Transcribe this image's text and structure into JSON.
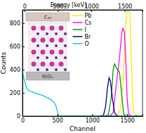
{
  "chart_data": {
    "type": "line",
    "xlabel": "Channel",
    "ylabel": "Counts",
    "x2label": "Energy [keV]",
    "xlim": [
      0,
      1720
    ],
    "xticks": [
      0,
      500,
      1000,
      1500
    ],
    "x2lim": [
      -30,
      1765
    ],
    "x2ticks": [
      0,
      500,
      1000,
      1500
    ],
    "ylim": [
      0,
      915
    ],
    "yticks": [
      0,
      200,
      400,
      600,
      800
    ],
    "grid": false,
    "legend": "upper center",
    "annotations": [
      {
        "text": "C₆₀"
      },
      {
        "text": "NiOₓ"
      }
    ],
    "series": [
      {
        "name": "Pb",
        "color": "#ffe600",
        "x": [
          1350,
          1400,
          1430,
          1460,
          1480,
          1500,
          1520,
          1540,
          1560,
          1580,
          1600,
          1650,
          1720
        ],
        "values": [
          0,
          50,
          200,
          500,
          800,
          900,
          910,
          880,
          500,
          100,
          20,
          0,
          0
        ]
      },
      {
        "name": "Cs",
        "color": "#ff00ff",
        "x": [
          1250,
          1300,
          1350,
          1390,
          1420,
          1440,
          1460,
          1480,
          1500,
          1520,
          1550
        ],
        "values": [
          0,
          30,
          300,
          500,
          700,
          760,
          720,
          500,
          150,
          20,
          0
        ]
      },
      {
        "name": "I",
        "color": "#009900",
        "x": [
          1180,
          1230,
          1270,
          1300,
          1320,
          1350,
          1390,
          1420,
          1450,
          1480
        ],
        "values": [
          0,
          10,
          150,
          400,
          450,
          410,
          380,
          200,
          20,
          0
        ]
      },
      {
        "name": "Br",
        "color": "#00008b",
        "x": [
          1100,
          1160,
          1190,
          1220,
          1240,
          1260,
          1290,
          1320,
          1360
        ],
        "values": [
          0,
          5,
          80,
          250,
          330,
          300,
          150,
          30,
          0
        ]
      },
      {
        "name": "O",
        "color": "#00ccdd",
        "x": [
          0,
          30,
          60,
          100,
          150,
          200,
          250,
          300,
          350,
          400,
          450,
          480,
          500,
          520,
          1720
        ],
        "values": [
          380,
          300,
          240,
          215,
          205,
          195,
          185,
          175,
          160,
          145,
          120,
          90,
          40,
          0,
          0
        ]
      }
    ]
  }
}
